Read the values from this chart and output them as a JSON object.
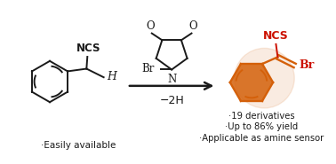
{
  "background_color": "#ffffff",
  "black": "#1a1a1a",
  "red": "#cc1100",
  "orange": "#d4600a",
  "below_left_text": "·Easily available",
  "below_arrow_text": "−2H",
  "below_right_lines": [
    "·19 derivatives",
    "·Up to 86% yield",
    "·Applicable as amine sensor"
  ],
  "figsize": [
    3.78,
    1.85
  ],
  "dpi": 100
}
